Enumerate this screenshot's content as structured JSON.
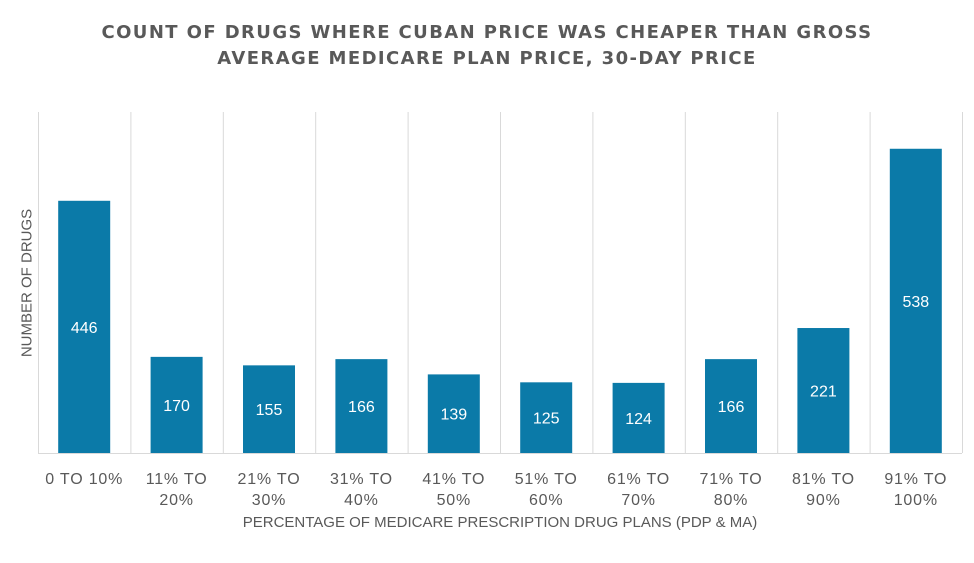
{
  "chart_data": {
    "type": "bar",
    "title_lines": [
      "COUNT OF DRUGS WHERE CUBAN PRICE WAS CHEAPER THAN GROSS",
      "AVERAGE MEDICARE PLAN PRICE, 30-DAY PRICE"
    ],
    "xlabel": "PERCENTAGE OF MEDICARE PRESCRIPTION DRUG PLANS (PDP & MA)",
    "ylabel": "NUMBER OF DRUGS",
    "categories": [
      [
        "0 TO 10%"
      ],
      [
        "11% TO",
        "20%"
      ],
      [
        "21% TO",
        "30%"
      ],
      [
        "31% TO",
        "40%"
      ],
      [
        "41% TO",
        "50%"
      ],
      [
        "51% TO",
        "60%"
      ],
      [
        "61% TO",
        "70%"
      ],
      [
        "71% TO",
        "80%"
      ],
      [
        "81% TO",
        "90%"
      ],
      [
        "91% TO",
        "100%"
      ]
    ],
    "values": [
      446,
      170,
      155,
      166,
      139,
      125,
      124,
      166,
      221,
      538
    ],
    "ylim": [
      0,
      600
    ],
    "grid": "vertical",
    "data_labels": "inside",
    "bar_color": "#0b7aa8",
    "label_color": "#ffffff",
    "grid_color": "#d9d9d9"
  }
}
